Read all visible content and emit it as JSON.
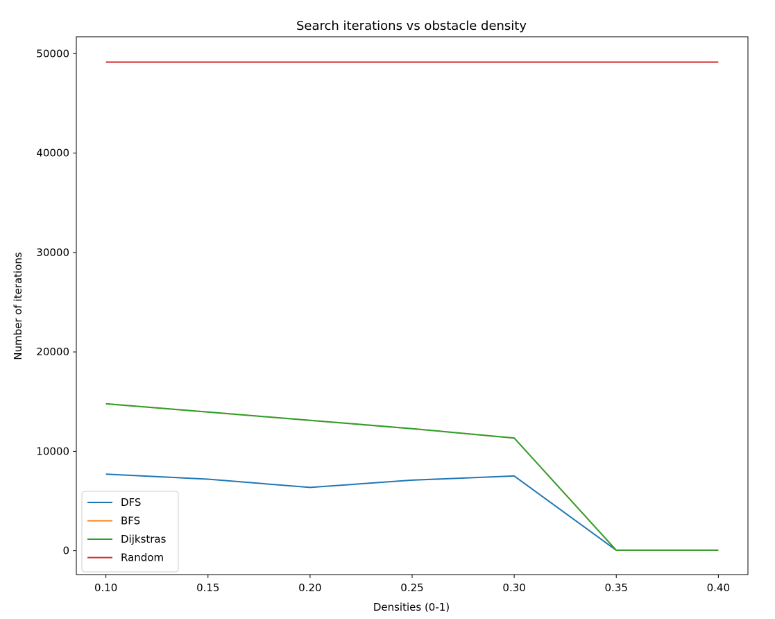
{
  "chart_data": {
    "type": "line",
    "title": "Search iterations vs obstacle density",
    "xlabel": "Densities (0-1)",
    "ylabel": "Number of iterations",
    "x": [
      0.1,
      0.15,
      0.2,
      0.25,
      0.3,
      0.35,
      0.4
    ],
    "xlim": [
      0.0855,
      0.4145
    ],
    "ylim": [
      -2400,
      51700
    ],
    "xticks": [
      0.1,
      0.15,
      0.2,
      0.25,
      0.3,
      0.35,
      0.4
    ],
    "xtick_labels": [
      "0.10",
      "0.15",
      "0.20",
      "0.25",
      "0.30",
      "0.35",
      "0.40"
    ],
    "yticks": [
      0,
      10000,
      20000,
      30000,
      40000,
      50000
    ],
    "ytick_labels": [
      "0",
      "10000",
      "20000",
      "30000",
      "40000",
      "50000"
    ],
    "grid": false,
    "legend_position": "lower-left",
    "series": [
      {
        "name": "DFS",
        "color": "#1f77b4",
        "values": [
          7700,
          7200,
          6370,
          7100,
          7520,
          50,
          50
        ]
      },
      {
        "name": "BFS",
        "color": "#ff7f0e",
        "values": [
          14780,
          13950,
          13120,
          12280,
          11340,
          50,
          50
        ]
      },
      {
        "name": "Dijkstras",
        "color": "#2ca02c",
        "values": [
          14780,
          13950,
          13120,
          12280,
          11340,
          50,
          50
        ]
      },
      {
        "name": "Random",
        "color": "#d62728",
        "values": [
          49150,
          49150,
          49150,
          49150,
          49150,
          49150,
          49150
        ]
      }
    ]
  }
}
